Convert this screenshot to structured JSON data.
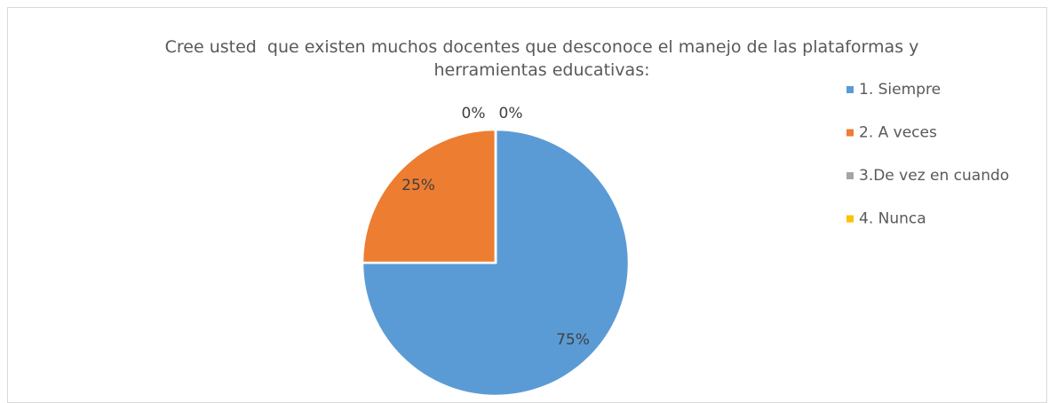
{
  "chart_data": {
    "type": "pie",
    "title": "Cree usted  que existen muchos docentes que desconoce el manejo de las plataformas y herramientas educativas:",
    "categories": [
      "1. Siempre",
      "2. A veces",
      "3.De vez en cuando",
      "4. Nunca"
    ],
    "values": [
      75,
      25,
      0,
      0
    ],
    "value_labels": [
      "75%",
      "25%",
      "0%",
      "0%"
    ],
    "colors": [
      "#5b9bd5",
      "#ed7d31",
      "#a5a5a5",
      "#ffc000"
    ],
    "legend": "right"
  }
}
